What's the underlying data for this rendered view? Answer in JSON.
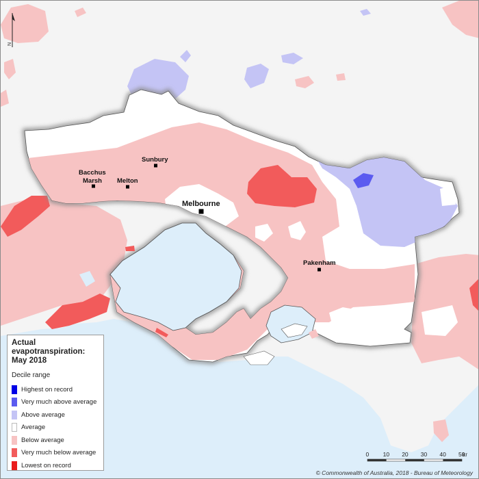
{
  "legend": {
    "title": "Actual evapotranspiration: May 2018",
    "subtitle": "Decile range",
    "items": [
      {
        "label": "Highest on record",
        "color": "#0000e6"
      },
      {
        "label": "Very much above average",
        "color": "#5b5bf0"
      },
      {
        "label": "Above average",
        "color": "#c4c4f5"
      },
      {
        "label": "Average",
        "color": "#ffffff"
      },
      {
        "label": "Below average",
        "color": "#f7c3c3"
      },
      {
        "label": "Very much below average",
        "color": "#f25b5b"
      },
      {
        "label": "Lowest on record",
        "color": "#ea1c1c"
      }
    ]
  },
  "places": [
    {
      "name": "Bacchus",
      "name2": "Marsh"
    },
    {
      "name": "Melton"
    },
    {
      "name": "Sunbury"
    },
    {
      "name": "Melbourne"
    },
    {
      "name": "Pakenham"
    }
  ],
  "scalebar": {
    "ticks": [
      "0",
      "10",
      "20",
      "30",
      "40",
      "50"
    ],
    "unit": "km"
  },
  "north_arrow": "N",
  "copyright": "© Commonwealth of Australia, 2018 - Bureau of Meteorology",
  "colors": {
    "sea": "#ddeefa",
    "land_outside": "#f4f4f4",
    "shadow": "#9a9a9a"
  }
}
